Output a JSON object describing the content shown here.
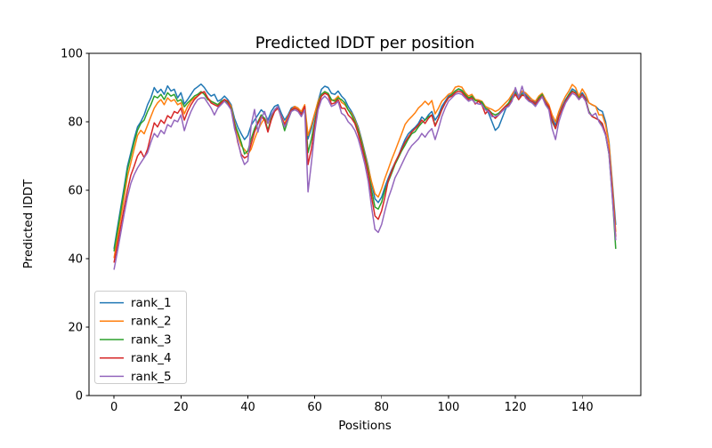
{
  "figure": {
    "background": "#ffffff"
  },
  "chart_data": {
    "type": "line",
    "title": "Predicted lDDT per position",
    "xlabel": "Positions",
    "ylabel": "Predicted lDDT",
    "xlim": [
      -7.5,
      157.5
    ],
    "ylim": [
      0,
      100
    ],
    "xticks": [
      0,
      20,
      40,
      60,
      80,
      100,
      120,
      140
    ],
    "yticks": [
      0,
      20,
      40,
      60,
      80,
      100
    ],
    "grid": false,
    "legend_position": "lower left",
    "positions_range": [
      0,
      150
    ],
    "series": [
      {
        "name": "rank_1",
        "color": "#1f77b4",
        "values": [
          43,
          49,
          55,
          61,
          67,
          71,
          75,
          78.5,
          80,
          82,
          85,
          87,
          90,
          88.5,
          89.5,
          88,
          90.5,
          89,
          89.5,
          87,
          88.5,
          85.2,
          86.5,
          88,
          89.5,
          90.2,
          91,
          90,
          88.5,
          87.5,
          88,
          86,
          86.5,
          87.5,
          86.5,
          85,
          81,
          78.5,
          76.5,
          74.8,
          76,
          79,
          80.5,
          82,
          83.5,
          82.5,
          80.5,
          83,
          84.5,
          85,
          82.5,
          80.5,
          82,
          84,
          84.5,
          84,
          82.5,
          84.5,
          75,
          78,
          82,
          86,
          89.5,
          90.4,
          90,
          88.3,
          88,
          89,
          87.5,
          86.5,
          84.5,
          83,
          81,
          78.5,
          75,
          71,
          67,
          62,
          57.5,
          56.4,
          58,
          61,
          63.6,
          66,
          68,
          70,
          72.5,
          74.8,
          76.5,
          77.5,
          78.4,
          79.5,
          81.4,
          80.5,
          82,
          83,
          80.5,
          82,
          84.5,
          86,
          87.5,
          88,
          89,
          89.6,
          89,
          88,
          86.5,
          87.5,
          86.5,
          86,
          85.5,
          84,
          82.5,
          80,
          77.5,
          78.5,
          81,
          83.5,
          85.5,
          87.5,
          88.8,
          87,
          88.5,
          88,
          87,
          86.5,
          85.5,
          87,
          88,
          86,
          84.5,
          81,
          79,
          82,
          84.5,
          86.5,
          88,
          89.6,
          89,
          87.5,
          88.5,
          87,
          85.5,
          84.9,
          84.5,
          83.5,
          83,
          80,
          74,
          62,
          50
        ]
      },
      {
        "name": "rank_2",
        "color": "#ff7f0e",
        "values": [
          40.3,
          46,
          52,
          58,
          64,
          68,
          72,
          76,
          77.5,
          76.5,
          79,
          81.5,
          84,
          85.5,
          86.5,
          85,
          87,
          86,
          86.5,
          85,
          85.5,
          82.3,
          84.5,
          86,
          87,
          87.5,
          88.3,
          88.8,
          87,
          86,
          85.5,
          85,
          85.5,
          86.5,
          86,
          84.5,
          80,
          76.1,
          73,
          71.9,
          70.5,
          72,
          75,
          77.5,
          79.5,
          81,
          79.5,
          81.4,
          83,
          84,
          81.5,
          79.5,
          81.5,
          83.5,
          84.5,
          84,
          83,
          85,
          76,
          79,
          82.5,
          86,
          88,
          88.8,
          87.8,
          86.2,
          86.5,
          87.5,
          85.7,
          85,
          83.5,
          82.5,
          80.5,
          78,
          74.5,
          70.5,
          66.5,
          62.5,
          59,
          58,
          60.5,
          63.5,
          66.2,
          69,
          71.4,
          74,
          76.5,
          79.2,
          80.5,
          81.5,
          82.6,
          84,
          84.9,
          86,
          85,
          86.2,
          82.3,
          84,
          86,
          87,
          88,
          88.5,
          90.1,
          90.4,
          90.1,
          88.5,
          87.5,
          88,
          86.5,
          86.4,
          86,
          84.5,
          84,
          83.6,
          83,
          83.5,
          84.5,
          85.5,
          86.5,
          88,
          89.6,
          87.5,
          89,
          88.5,
          87.5,
          86.5,
          86,
          87.5,
          88.3,
          86.5,
          85,
          82,
          80,
          83,
          85.5,
          87.5,
          89,
          90.9,
          90,
          87.5,
          89.6,
          88,
          85.5,
          85,
          84.5,
          82,
          82,
          79,
          73.5,
          61,
          48
        ]
      },
      {
        "name": "rank_3",
        "color": "#2ca02c",
        "values": [
          42.3,
          48,
          54,
          60,
          66,
          70,
          74,
          77.5,
          79.5,
          80.5,
          83,
          85,
          87.5,
          87,
          88,
          86.5,
          88.5,
          87.5,
          88,
          86,
          86.5,
          84.4,
          85.5,
          86.5,
          87.5,
          88,
          88.8,
          88,
          86.5,
          86,
          85.5,
          85,
          86,
          86.5,
          85.5,
          84,
          79.5,
          77,
          74,
          70.6,
          71.5,
          75,
          78,
          80,
          82,
          81,
          77.5,
          81,
          83.5,
          84.5,
          81,
          77.4,
          80.5,
          83,
          84,
          83.5,
          82,
          84,
          71,
          75,
          80,
          85,
          88,
          88.8,
          88.3,
          86.5,
          86,
          87,
          86.5,
          85.5,
          83.5,
          82,
          80,
          77.5,
          74,
          70,
          65.5,
          60,
          55.1,
          54.5,
          56.5,
          60,
          62.5,
          65,
          67.5,
          69.5,
          71.5,
          73.2,
          75,
          76.5,
          77.1,
          78.5,
          79.7,
          80.5,
          81.5,
          82,
          79,
          81,
          83.5,
          85.5,
          87,
          88,
          89,
          89.6,
          89.2,
          88,
          87,
          87.5,
          86.2,
          86,
          85.8,
          84,
          83.5,
          82.5,
          82,
          82.5,
          83.5,
          84.5,
          85.5,
          87,
          88.3,
          86.5,
          88,
          87.5,
          86.5,
          85.5,
          85,
          87,
          88,
          85.5,
          84,
          80,
          78,
          81.5,
          84,
          86,
          88,
          89,
          88.5,
          87,
          88,
          86.5,
          83,
          81.5,
          81,
          80.5,
          79,
          76,
          70.5,
          58,
          43
        ]
      },
      {
        "name": "rank_4",
        "color": "#d62728",
        "values": [
          39,
          44,
          49.5,
          55,
          60,
          64.4,
          67,
          70,
          71.4,
          69.5,
          72,
          76,
          79.7,
          78.5,
          80.5,
          79.5,
          81.8,
          81,
          83,
          82.5,
          84,
          80.5,
          83,
          85,
          86.5,
          87.5,
          88.5,
          88.8,
          87,
          85.5,
          85,
          84.5,
          85.5,
          86.5,
          86,
          83.5,
          79,
          74,
          70.5,
          69.4,
          70,
          73.5,
          77,
          79.5,
          81.5,
          80.5,
          77,
          80.5,
          83,
          84,
          81.5,
          79,
          81,
          83.5,
          84,
          83.5,
          82,
          84.5,
          67.5,
          72,
          79,
          84.5,
          87.5,
          88.3,
          87.8,
          85.2,
          85.5,
          86.5,
          84,
          83.9,
          82,
          81,
          79.5,
          76.5,
          73,
          69,
          64.5,
          58,
          52.5,
          51.5,
          54,
          58,
          62.9,
          65.5,
          68,
          70,
          72,
          74,
          75.5,
          77,
          78,
          79,
          80.5,
          79.5,
          81,
          82,
          78.7,
          81,
          83.5,
          85.5,
          87,
          87.5,
          88.5,
          89,
          88.6,
          87.5,
          86.5,
          87,
          85.2,
          86,
          84.9,
          82.3,
          83.5,
          82,
          81,
          82,
          83.5,
          84.5,
          85,
          86.5,
          88,
          86.5,
          87.8,
          87.5,
          86.5,
          86,
          85.2,
          86.5,
          87.5,
          85.5,
          84.5,
          80.5,
          78,
          81.5,
          84,
          86,
          87.5,
          88.8,
          88.3,
          86.5,
          88,
          86.5,
          82.6,
          81.5,
          81,
          80.5,
          79.5,
          76.5,
          71,
          59,
          46.5
        ]
      },
      {
        "name": "rank_5",
        "color": "#9467bd",
        "values": [
          36.9,
          42,
          47.5,
          53,
          58,
          62,
          64.5,
          66.5,
          68,
          69.5,
          71,
          74,
          76.6,
          75.5,
          77.5,
          76.5,
          79.2,
          78.5,
          80.5,
          80,
          82,
          77.4,
          80.5,
          83,
          85,
          86.5,
          87,
          87,
          85.5,
          84,
          82,
          84,
          85,
          86,
          85,
          83.5,
          78,
          74.5,
          70,
          67.5,
          68.5,
          79,
          83.6,
          77,
          81,
          83,
          79.5,
          82,
          83.5,
          84.5,
          81,
          78.5,
          80.5,
          83,
          83.5,
          83,
          81.5,
          83.5,
          59.5,
          68,
          77,
          83.5,
          86.5,
          87.5,
          86.5,
          84.5,
          85,
          86,
          82.5,
          81.8,
          80,
          79,
          77.5,
          75,
          71.5,
          67.5,
          62.5,
          55,
          48.6,
          47.7,
          50,
          54,
          57.7,
          60.5,
          63.6,
          65.5,
          67.5,
          69.6,
          71.5,
          73,
          74,
          75,
          76.6,
          75.5,
          77,
          78,
          74.8,
          78,
          81.5,
          84,
          86,
          87,
          88,
          88.3,
          88,
          87,
          86,
          86.5,
          85.5,
          85.2,
          85,
          83.5,
          83,
          81.5,
          81.5,
          82,
          83,
          84,
          84.5,
          86,
          90,
          87,
          90.4,
          87,
          86,
          85.5,
          84.5,
          86,
          87.3,
          85,
          83.5,
          78,
          74.8,
          80,
          83,
          85.5,
          87,
          88.3,
          87.8,
          86.5,
          87.5,
          86,
          82.5,
          81.8,
          82.5,
          80,
          78.5,
          76,
          70.5,
          57.5,
          45.5
        ]
      }
    ]
  }
}
